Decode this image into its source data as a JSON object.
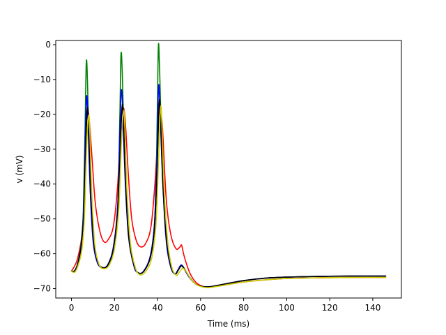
{
  "chart_data": {
    "type": "line",
    "xlabel": "Time (ms)",
    "ylabel": "v (mV)",
    "xlim": [
      -7.3,
      153.3
    ],
    "ylim": [
      -72.7,
      1.2
    ],
    "xticks": [
      0,
      20,
      40,
      60,
      80,
      100,
      120,
      140
    ],
    "yticks": [
      0,
      -10,
      -20,
      -30,
      -40,
      -50,
      -60,
      -70
    ],
    "grid": false,
    "legend": "none",
    "series": [
      {
        "color": "#ff0000",
        "points": [
          [
            0,
            -65.0
          ],
          [
            3,
            -61.0
          ],
          [
            5.5,
            -50.0
          ],
          [
            7,
            -22.0
          ],
          [
            8,
            -20.0
          ],
          [
            9.5,
            -32.0
          ],
          [
            11,
            -45.0
          ],
          [
            13,
            -53.0
          ],
          [
            15,
            -56.5
          ],
          [
            17,
            -56.0
          ],
          [
            19.5,
            -52.0
          ],
          [
            21.5,
            -40.0
          ],
          [
            23,
            -22.0
          ],
          [
            24,
            -18.0
          ],
          [
            25,
            -22.0
          ],
          [
            26.5,
            -38.0
          ],
          [
            28,
            -50.0
          ],
          [
            30,
            -56.0
          ],
          [
            32,
            -58.0
          ],
          [
            34.5,
            -57.0
          ],
          [
            37,
            -52.0
          ],
          [
            39,
            -38.0
          ],
          [
            40.5,
            -21.0
          ],
          [
            41.3,
            -18.5
          ],
          [
            42.3,
            -24.0
          ],
          [
            44,
            -44.0
          ],
          [
            46,
            -54.0
          ],
          [
            48.5,
            -58.5
          ],
          [
            50.5,
            -58.0
          ],
          [
            51.2,
            -57.6
          ],
          [
            52.5,
            -61.0
          ],
          [
            55,
            -65.5
          ],
          [
            58,
            -68.3
          ],
          [
            62,
            -69.5
          ],
          [
            66,
            -69.4
          ],
          [
            72,
            -68.9
          ],
          [
            80,
            -68.1
          ],
          [
            90,
            -67.5
          ],
          [
            100,
            -67.1
          ],
          [
            115,
            -66.9
          ],
          [
            130,
            -66.8
          ],
          [
            146,
            -66.8
          ]
        ]
      },
      {
        "color": "#008000",
        "points": [
          [
            0,
            -65.0
          ],
          [
            1.5,
            -64.8
          ],
          [
            3,
            -62.5
          ],
          [
            4.5,
            -57.0
          ],
          [
            5.5,
            -48.0
          ],
          [
            6.3,
            -25.0
          ],
          [
            6.9,
            -5.0
          ],
          [
            7.5,
            -12.0
          ],
          [
            8.5,
            -38.0
          ],
          [
            10,
            -55.0
          ],
          [
            12,
            -62.0
          ],
          [
            14.5,
            -64.0
          ],
          [
            17,
            -63.0
          ],
          [
            19.5,
            -58.0
          ],
          [
            21.5,
            -46.0
          ],
          [
            22.5,
            -20.0
          ],
          [
            23,
            -3.0
          ],
          [
            23.6,
            -8.0
          ],
          [
            24.8,
            -35.0
          ],
          [
            26.5,
            -54.0
          ],
          [
            29,
            -63.0
          ],
          [
            31,
            -65.5
          ],
          [
            33.5,
            -65.0
          ],
          [
            36.5,
            -61.0
          ],
          [
            38.5,
            -52.0
          ],
          [
            39.5,
            -35.0
          ],
          [
            40.3,
            -2.0
          ],
          [
            40.9,
            -6.0
          ],
          [
            42.2,
            -35.0
          ],
          [
            44,
            -55.0
          ],
          [
            46,
            -63.5
          ],
          [
            48,
            -65.8
          ],
          [
            49.5,
            -64.8
          ],
          [
            51,
            -63.5
          ],
          [
            52.5,
            -64.5
          ],
          [
            55,
            -67.0
          ],
          [
            58,
            -68.8
          ],
          [
            62,
            -69.5
          ],
          [
            66,
            -69.3
          ],
          [
            72,
            -68.6
          ],
          [
            80,
            -67.7
          ],
          [
            90,
            -67.0
          ],
          [
            100,
            -66.7
          ],
          [
            115,
            -66.5
          ],
          [
            130,
            -66.4
          ],
          [
            146,
            -66.4
          ]
        ]
      },
      {
        "color": "#0000ff",
        "points": [
          [
            0,
            -65.0
          ],
          [
            1.5,
            -64.9
          ],
          [
            3,
            -62.6
          ],
          [
            4.5,
            -57.5
          ],
          [
            5.6,
            -48.0
          ],
          [
            6.4,
            -28.0
          ],
          [
            7,
            -15.0
          ],
          [
            7.6,
            -20.0
          ],
          [
            8.6,
            -40.0
          ],
          [
            10,
            -56.0
          ],
          [
            12,
            -62.5
          ],
          [
            14.5,
            -64.0
          ],
          [
            17,
            -63.0
          ],
          [
            19.5,
            -58.0
          ],
          [
            21.5,
            -46.0
          ],
          [
            22.5,
            -25.0
          ],
          [
            23.1,
            -13.5
          ],
          [
            23.7,
            -17.0
          ],
          [
            24.9,
            -38.0
          ],
          [
            26.5,
            -55.0
          ],
          [
            29,
            -63.5
          ],
          [
            31,
            -65.5
          ],
          [
            33.5,
            -65.0
          ],
          [
            36.5,
            -61.0
          ],
          [
            38.5,
            -52.0
          ],
          [
            39.6,
            -35.0
          ],
          [
            40.4,
            -13.0
          ],
          [
            41,
            -16.0
          ],
          [
            42.3,
            -38.0
          ],
          [
            44,
            -56.0
          ],
          [
            46,
            -63.5
          ],
          [
            48,
            -65.8
          ],
          [
            49.5,
            -64.6
          ],
          [
            51,
            -63.2
          ],
          [
            52.5,
            -64.5
          ],
          [
            55,
            -67.0
          ],
          [
            58,
            -68.8
          ],
          [
            62,
            -69.5
          ],
          [
            66,
            -69.3
          ],
          [
            72,
            -68.6
          ],
          [
            80,
            -67.7
          ],
          [
            90,
            -67.0
          ],
          [
            100,
            -66.7
          ],
          [
            115,
            -66.5
          ],
          [
            130,
            -66.4
          ],
          [
            146,
            -66.4
          ]
        ]
      },
      {
        "color": "#000000",
        "points": [
          [
            0,
            -65.0
          ],
          [
            1.5,
            -64.9
          ],
          [
            3,
            -62.8
          ],
          [
            4.5,
            -58.0
          ],
          [
            5.7,
            -49.0
          ],
          [
            6.6,
            -30.0
          ],
          [
            7.3,
            -19.0
          ],
          [
            7.9,
            -21.0
          ],
          [
            8.9,
            -40.0
          ],
          [
            10.3,
            -56.0
          ],
          [
            12.3,
            -62.5
          ],
          [
            14.7,
            -64.0
          ],
          [
            17.2,
            -63.0
          ],
          [
            19.7,
            -58.0
          ],
          [
            21.7,
            -46.0
          ],
          [
            22.8,
            -28.0
          ],
          [
            23.5,
            -18.0
          ],
          [
            24.1,
            -20.0
          ],
          [
            25.2,
            -40.0
          ],
          [
            26.8,
            -56.0
          ],
          [
            29.2,
            -63.5
          ],
          [
            31.2,
            -65.5
          ],
          [
            33.7,
            -65.0
          ],
          [
            36.7,
            -61.0
          ],
          [
            38.7,
            -52.0
          ],
          [
            39.8,
            -36.0
          ],
          [
            40.7,
            -17.5
          ],
          [
            41.3,
            -19.0
          ],
          [
            42.5,
            -40.0
          ],
          [
            44.2,
            -56.0
          ],
          [
            46.2,
            -63.5
          ],
          [
            48.2,
            -65.8
          ],
          [
            49.7,
            -64.6
          ],
          [
            51.2,
            -63.4
          ],
          [
            52.7,
            -64.5
          ],
          [
            55.2,
            -67.0
          ],
          [
            58,
            -68.8
          ],
          [
            62,
            -69.5
          ],
          [
            66,
            -69.3
          ],
          [
            72,
            -68.6
          ],
          [
            80,
            -67.7
          ],
          [
            90,
            -67.0
          ],
          [
            100,
            -66.7
          ],
          [
            115,
            -66.5
          ],
          [
            130,
            -66.4
          ],
          [
            146,
            -66.4
          ]
        ]
      },
      {
        "color": "#cccc00",
        "points": [
          [
            0,
            -65.0
          ],
          [
            1.5,
            -65.3
          ],
          [
            3,
            -63.5
          ],
          [
            4.8,
            -59.0
          ],
          [
            6,
            -50.0
          ],
          [
            7,
            -30.0
          ],
          [
            7.8,
            -21.0
          ],
          [
            8.4,
            -23.0
          ],
          [
            9.4,
            -42.0
          ],
          [
            10.8,
            -57.0
          ],
          [
            12.8,
            -63.0
          ],
          [
            15,
            -64.3
          ],
          [
            17.5,
            -63.3
          ],
          [
            20,
            -58.5
          ],
          [
            22,
            -47.0
          ],
          [
            23.2,
            -28.0
          ],
          [
            24.1,
            -19.5
          ],
          [
            24.7,
            -22.0
          ],
          [
            25.8,
            -42.0
          ],
          [
            27.4,
            -57.0
          ],
          [
            29.7,
            -64.0
          ],
          [
            31.7,
            -66.0
          ],
          [
            34.2,
            -65.3
          ],
          [
            37.2,
            -61.5
          ],
          [
            39.2,
            -52.0
          ],
          [
            40.3,
            -36.0
          ],
          [
            41.3,
            -19.0
          ],
          [
            41.9,
            -21.0
          ],
          [
            43.1,
            -42.0
          ],
          [
            44.8,
            -57.0
          ],
          [
            46.7,
            -64.0
          ],
          [
            48.7,
            -66.2
          ],
          [
            50.2,
            -65.2
          ],
          [
            51.7,
            -64.2
          ],
          [
            53.2,
            -65.0
          ],
          [
            55.7,
            -67.5
          ],
          [
            58.5,
            -69.0
          ],
          [
            62.5,
            -69.7
          ],
          [
            66.5,
            -69.5
          ],
          [
            72,
            -68.9
          ],
          [
            80,
            -68.1
          ],
          [
            90,
            -67.5
          ],
          [
            100,
            -67.1
          ],
          [
            115,
            -66.9
          ],
          [
            130,
            -66.8
          ],
          [
            146,
            -66.8
          ]
        ]
      }
    ]
  }
}
